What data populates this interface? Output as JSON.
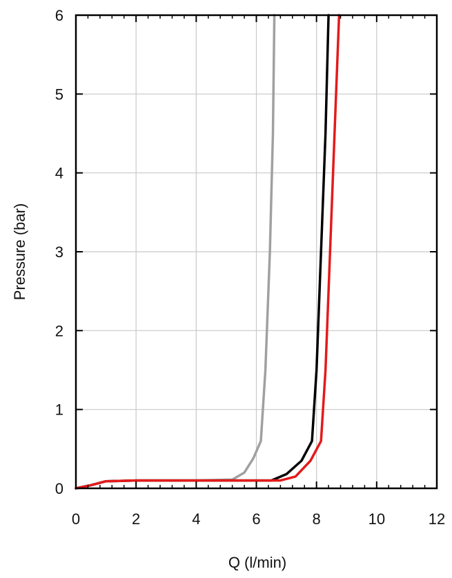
{
  "chart_data": {
    "type": "line",
    "title": "",
    "xlabel": "Q (l/min)",
    "ylabel": "Pressure (bar)",
    "xlim": [
      0,
      12
    ],
    "ylim": [
      0,
      6
    ],
    "xticks": [
      0,
      2,
      4,
      6,
      8,
      10,
      12
    ],
    "yticks": [
      0,
      1,
      2,
      3,
      4,
      5,
      6
    ],
    "xtick_labels": [
      "0",
      "2",
      "4",
      "6",
      "8",
      "10",
      "12"
    ],
    "ytick_labels": [
      "0",
      "1",
      "2",
      "3",
      "4",
      "5",
      "6"
    ],
    "grid": true,
    "legend": "none",
    "series": [
      {
        "color": "#a0a0a0",
        "points": [
          [
            0,
            0
          ],
          [
            0.5,
            0.04
          ],
          [
            1.0,
            0.09
          ],
          [
            2.0,
            0.1
          ],
          [
            4.0,
            0.1
          ],
          [
            5.2,
            0.11
          ],
          [
            5.6,
            0.2
          ],
          [
            5.9,
            0.38
          ],
          [
            6.15,
            0.6
          ],
          [
            6.3,
            1.5
          ],
          [
            6.45,
            3.0
          ],
          [
            6.55,
            4.5
          ],
          [
            6.6,
            6.0
          ]
        ]
      },
      {
        "color": "#000000",
        "points": [
          [
            0,
            0
          ],
          [
            0.5,
            0.04
          ],
          [
            1.0,
            0.09
          ],
          [
            2.0,
            0.1
          ],
          [
            4.0,
            0.1
          ],
          [
            6.5,
            0.1
          ],
          [
            7.0,
            0.18
          ],
          [
            7.5,
            0.35
          ],
          [
            7.85,
            0.6
          ],
          [
            8.0,
            1.5
          ],
          [
            8.15,
            3.0
          ],
          [
            8.3,
            4.5
          ],
          [
            8.4,
            6.0
          ]
        ]
      },
      {
        "color": "#e41a1a",
        "points": [
          [
            0,
            0
          ],
          [
            0.5,
            0.04
          ],
          [
            1.0,
            0.09
          ],
          [
            2.0,
            0.1
          ],
          [
            4.0,
            0.1
          ],
          [
            6.8,
            0.1
          ],
          [
            7.3,
            0.15
          ],
          [
            7.8,
            0.35
          ],
          [
            8.15,
            0.6
          ],
          [
            8.3,
            1.5
          ],
          [
            8.45,
            3.0
          ],
          [
            8.6,
            4.5
          ],
          [
            8.75,
            6.0
          ]
        ]
      }
    ]
  }
}
